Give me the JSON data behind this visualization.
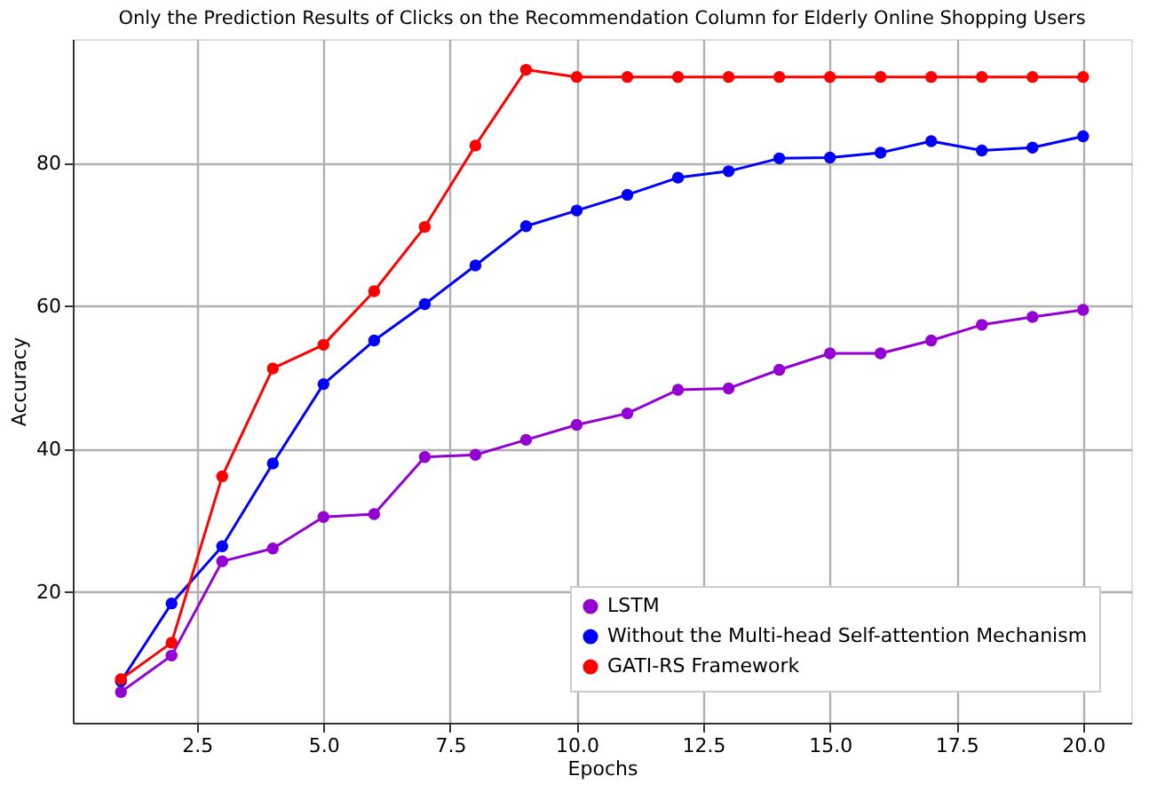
{
  "chart_data": {
    "type": "line",
    "title": "Only the Prediction Results of Clicks on the Recommendation Column for Elderly Online Shopping Users",
    "xlabel": "Epochs",
    "ylabel": "Accuracy",
    "x": [
      1,
      2,
      3,
      4,
      5,
      6,
      7,
      8,
      9,
      10,
      11,
      12,
      13,
      14,
      15,
      16,
      17,
      18,
      19,
      20
    ],
    "series": [
      {
        "name": "LSTM",
        "color": "#9400d3",
        "values": [
          6.0,
          11.1,
          24.3,
          26.1,
          30.5,
          30.9,
          38.9,
          39.2,
          41.3,
          43.4,
          45.0,
          48.3,
          48.5,
          51.1,
          53.4,
          53.4,
          55.2,
          57.4,
          58.5,
          59.5
        ]
      },
      {
        "name": "Without the Multi-head Self-attention Mechanism",
        "color": "#0000ff",
        "values": [
          7.5,
          18.4,
          26.4,
          38.0,
          49.1,
          55.2,
          60.3,
          65.7,
          71.2,
          73.4,
          75.6,
          78.0,
          78.9,
          80.7,
          80.8,
          81.5,
          83.1,
          81.8,
          82.2,
          83.8
        ]
      },
      {
        "name": "GATI-RS Framework",
        "color": "#ff0000",
        "values": [
          7.8,
          12.9,
          36.2,
          51.3,
          54.6,
          62.1,
          71.1,
          82.5,
          93.1,
          92.1,
          92.1,
          92.1,
          92.1,
          92.1,
          92.1,
          92.1,
          92.1,
          92.1,
          92.1,
          92.1
        ]
      }
    ],
    "xlim": [
      0.05,
      20.95
    ],
    "ylim": [
      1.7,
      97.4
    ],
    "xticks": [
      {
        "value": 2.5,
        "label": "2.5"
      },
      {
        "value": 5,
        "label": "5.0"
      },
      {
        "value": 7.5,
        "label": "7.5"
      },
      {
        "value": 10,
        "label": "10.0"
      },
      {
        "value": 12.5,
        "label": "12.5"
      },
      {
        "value": 15,
        "label": "15.0"
      },
      {
        "value": 17.5,
        "label": "17.5"
      },
      {
        "value": 20,
        "label": "20.0"
      }
    ],
    "yticks": [
      20,
      40,
      60,
      80
    ],
    "grid": true,
    "legend": "bottom right",
    "marker": "circle",
    "line_style": "solid"
  }
}
